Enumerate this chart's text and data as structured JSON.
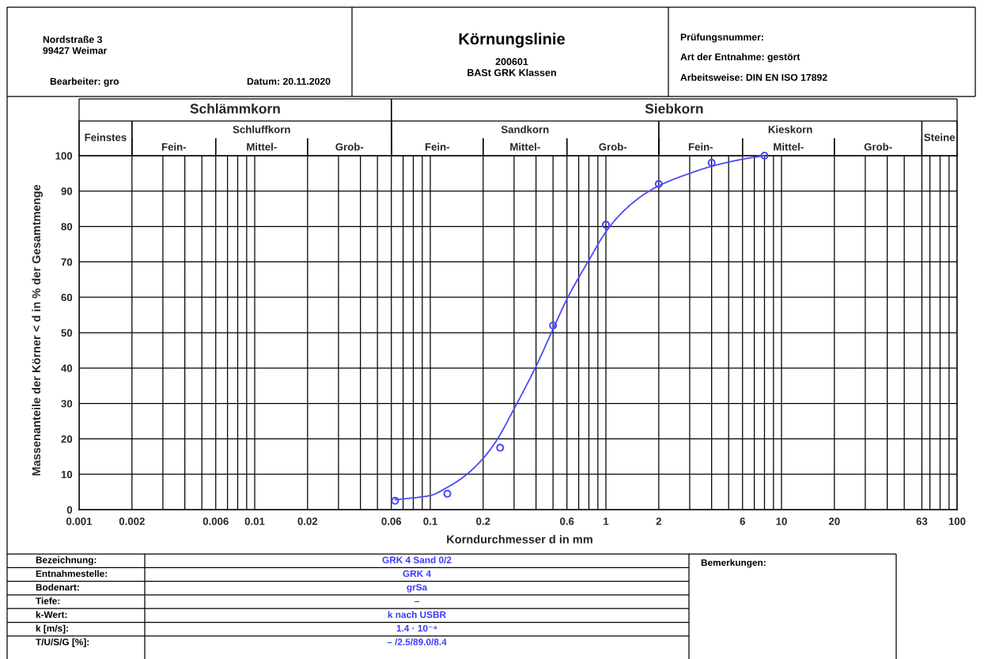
{
  "chart_data": {
    "type": "line",
    "title": "Körnungslinie",
    "subtitle": "200601\nBASt GRK Klassen",
    "xlabel": "Korndurchmesser d in mm",
    "ylabel": "Massenanteile der Körner < d in % der Gesamtmenge",
    "log": "x",
    "xlim": [
      0.001,
      100
    ],
    "ylim": [
      0,
      100
    ],
    "xticks": [
      0.001,
      0.002,
      {
        "value": 0.003,
        "label": null
      },
      {
        "value": 0.004,
        "label": null
      },
      {
        "value": 0.005,
        "label": null
      },
      0.006,
      {
        "value": 0.007,
        "label": null
      },
      {
        "value": 0.008,
        "label": null
      },
      {
        "value": 0.009,
        "label": null
      },
      0.01,
      0.02,
      {
        "value": 0.03,
        "label": null
      },
      {
        "value": 0.04,
        "label": null
      },
      {
        "value": 0.05,
        "label": null
      },
      0.06,
      {
        "value": 0.07,
        "label": null
      },
      {
        "value": 0.08,
        "label": null
      },
      {
        "value": 0.09,
        "label": null
      },
      0.1,
      0.2,
      {
        "value": 0.3,
        "label": null
      },
      {
        "value": 0.4,
        "label": null
      },
      {
        "value": 0.5,
        "label": null
      },
      0.6,
      {
        "value": 0.7,
        "label": null
      },
      {
        "value": 0.8,
        "label": null
      },
      {
        "value": 0.9,
        "label": null
      },
      1,
      2,
      {
        "value": 3,
        "label": null
      },
      {
        "value": 4,
        "label": null
      },
      {
        "value": 5,
        "label": null
      },
      6,
      {
        "value": 7,
        "label": null
      },
      {
        "value": 8,
        "label": null
      },
      {
        "value": 9,
        "label": null
      },
      10,
      20,
      {
        "value": 30,
        "label": null
      },
      {
        "value": 40,
        "label": null
      },
      {
        "value": 50,
        "label": null
      },
      63,
      {
        "value": 70,
        "label": null
      },
      {
        "value": 80,
        "label": null
      },
      {
        "value": 90,
        "label": null
      },
      100
    ],
    "yticks": [
      0,
      10,
      20,
      30,
      40,
      50,
      60,
      70,
      80,
      90,
      100
    ],
    "grid": true,
    "series": [
      {
        "type": "scatter",
        "color": "#4646f2",
        "marker": "circle",
        "x": [
          0.063,
          0.125,
          0.25,
          0.5,
          1,
          2,
          4,
          8
        ],
        "values": [
          2.5,
          4.5,
          17.5,
          52,
          80.5,
          92,
          98,
          100
        ]
      },
      {
        "color": "#4b4bf5",
        "x": [
          0.063,
          0.1,
          0.125,
          0.157,
          0.2,
          0.238,
          0.3,
          0.4,
          0.5,
          0.6,
          0.69,
          0.79,
          1,
          1.24,
          1.64,
          2,
          3,
          4,
          6,
          8
        ],
        "values": [
          2.8,
          4,
          6.3,
          9.5,
          14.5,
          19.5,
          28.5,
          40.5,
          51,
          59.5,
          65,
          70,
          78.5,
          84,
          89,
          91.5,
          95,
          97,
          99,
          100
        ]
      }
    ],
    "annotations": [
      "Schlämmkorn",
      "Siebkorn",
      "Feinstes",
      "Schluffkorn",
      "Sandkorn",
      "Kieskorn",
      "Steine",
      "Fein-",
      "Mittel-",
      "Grob-",
      "Fein-",
      "Mittel-",
      "Grob-",
      "Fein-",
      "Mittel-",
      "Grob-",
      "Nordstraße 3",
      "99427 Weimar",
      "Bearbeiter: gro",
      "Datum: 20.11.2020",
      "Prüfungsnummer:",
      "Art der Entnahme: gestört",
      "Arbeitsweise: DIN EN ISO 17892",
      "Bezeichnung:",
      "GRK 4 Sand 0/2",
      "Entnahmestelle:",
      "GRK 4",
      "Bodenart:",
      "grSa",
      "Tiefe:",
      "–",
      "k-Wert:",
      "k nach USBR",
      "k [m/s]:",
      "1.4 · 10⁻⁴",
      "T/U/S/G [%]:",
      "– /2.5/89.0/8.4",
      "Bemerkungen:"
    ]
  }
}
